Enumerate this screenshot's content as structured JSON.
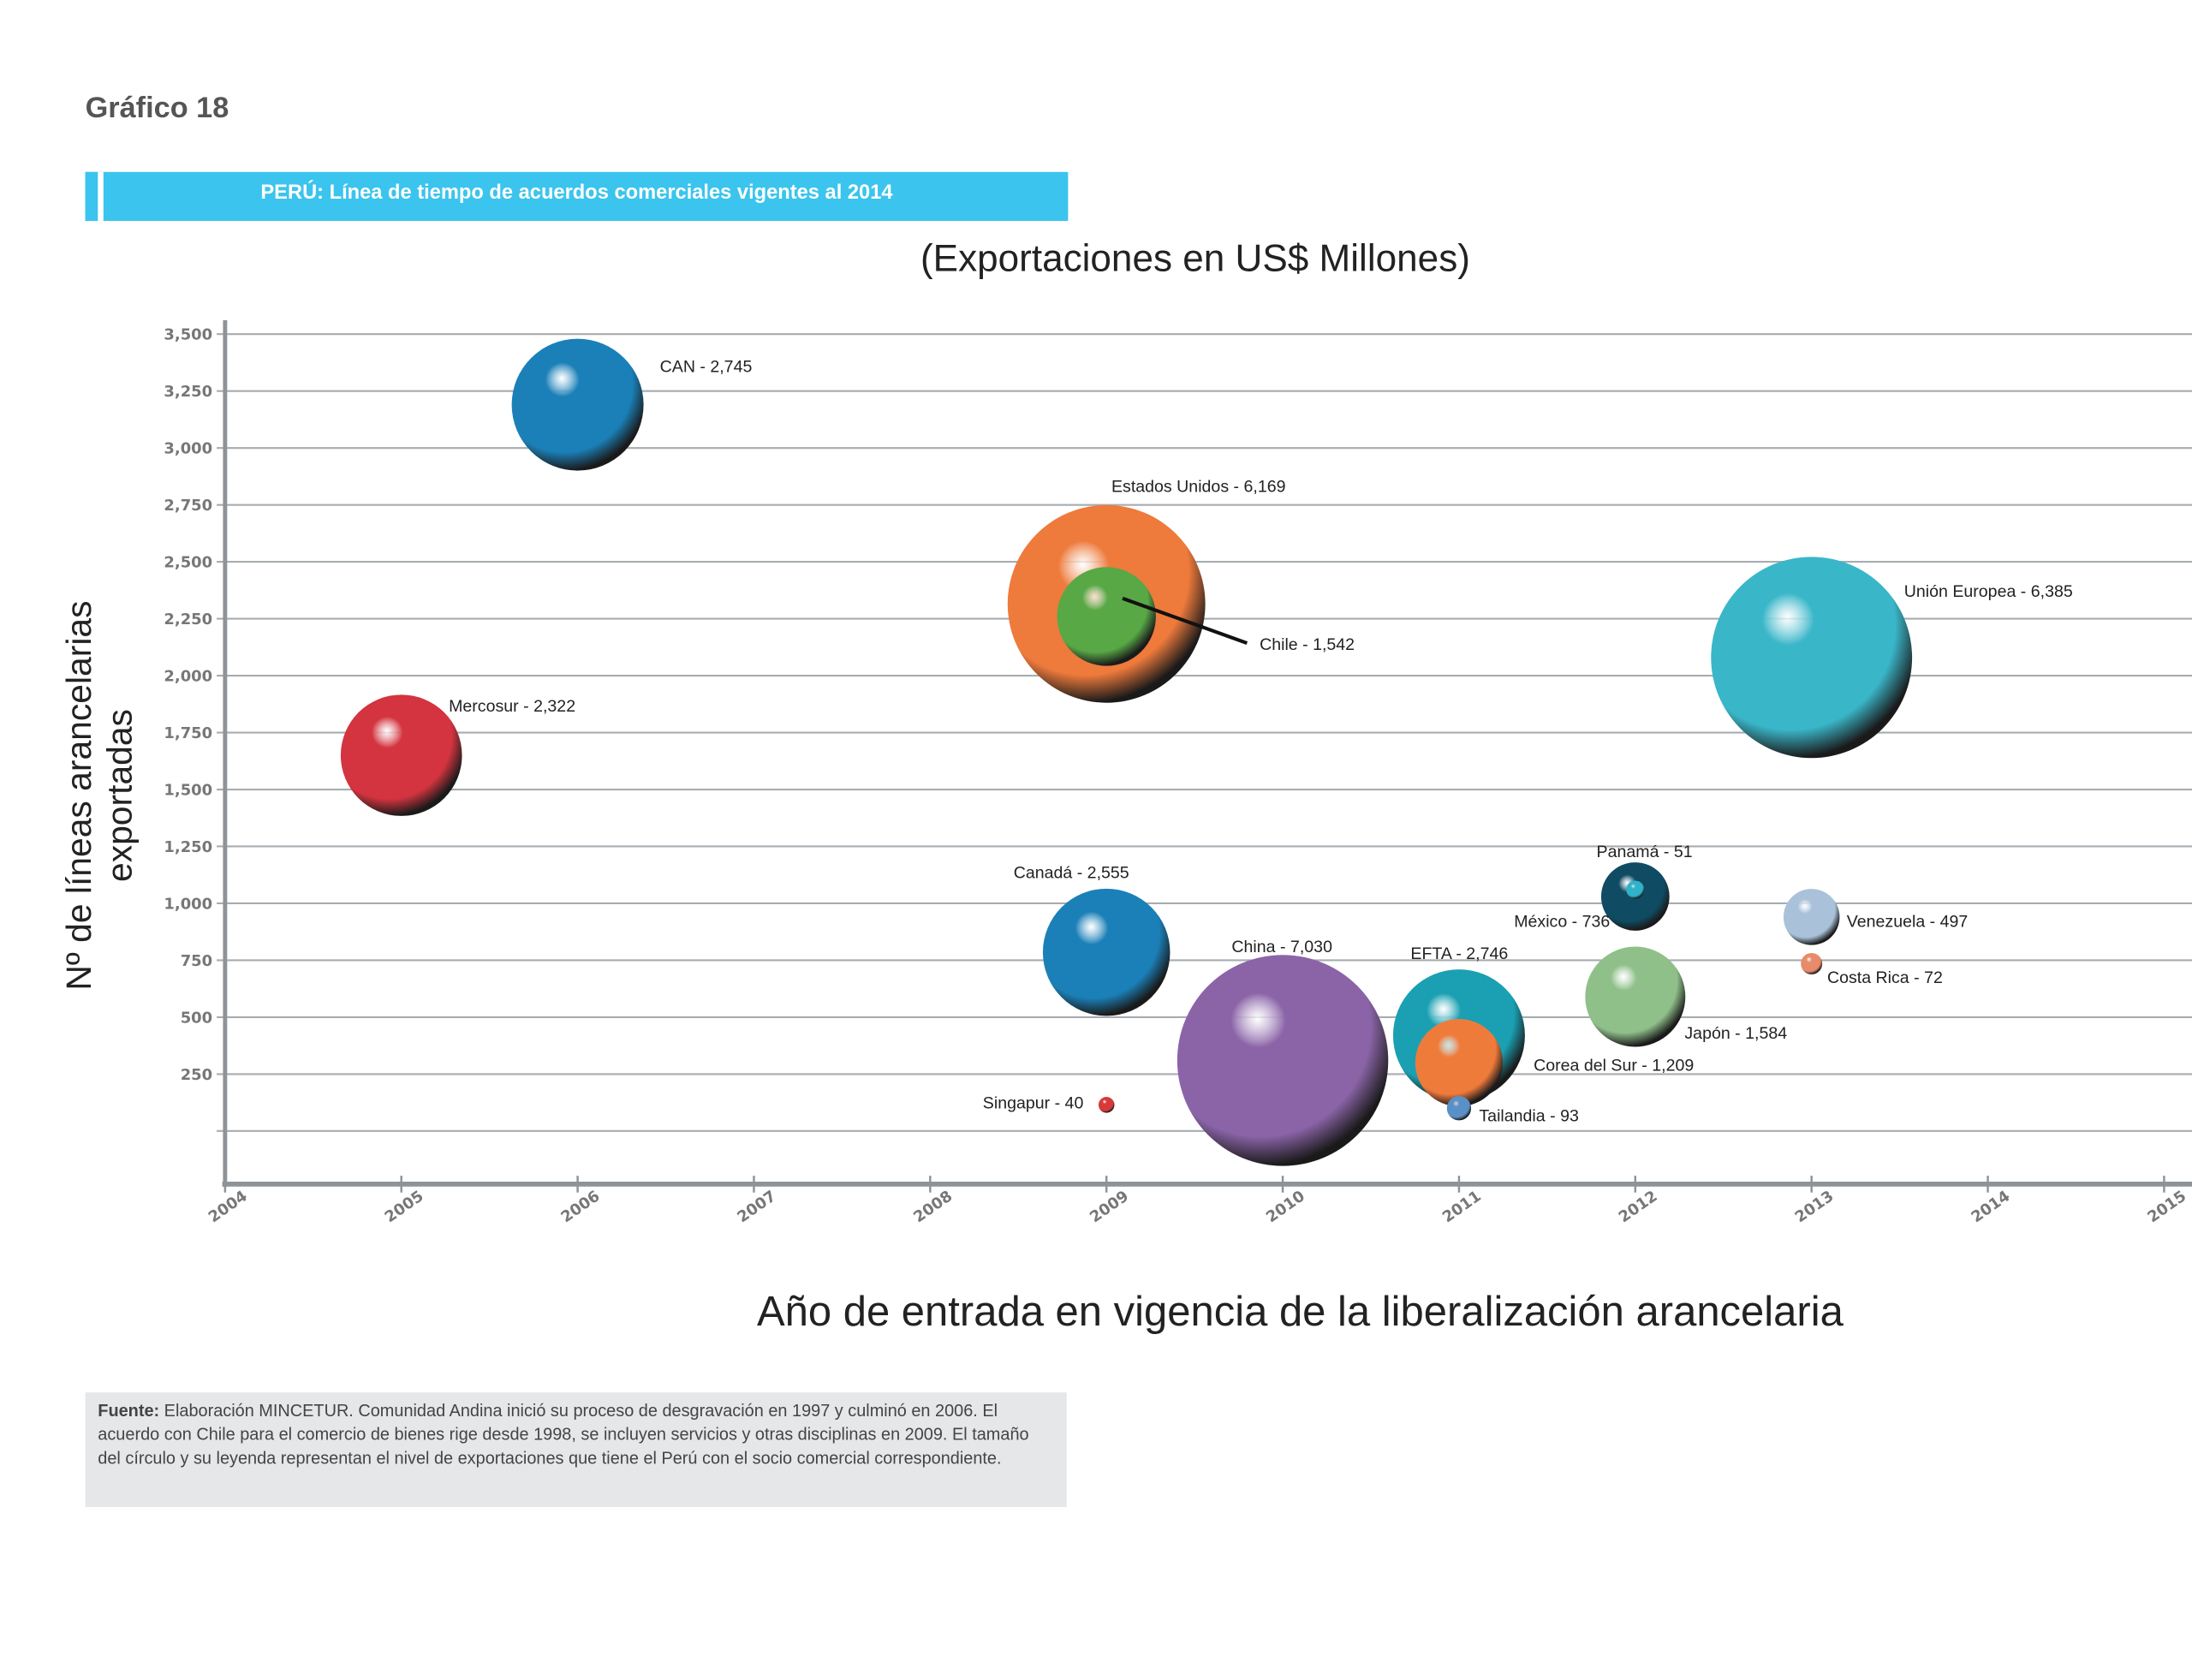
{
  "figure_number": "Gráfico 18",
  "banner_title": "PERÚ: Línea de tiempo de acuerdos comerciales vigentes al 2014",
  "source": {
    "label": "Fuente:",
    "text": " Elaboración MINCETUR.  Comunidad Andina inició su proceso de desgravación en 1997 y culminó en 2006. El acuerdo con Chile para el comercio de bienes rige desde 1998, se incluyen servicios y otras disciplinas en 2009. El tamaño del círculo y su leyenda representan el nivel de exportaciones que tiene el Perú con el socio comercial correspondiente."
  },
  "chart_data": {
    "type": "bubble",
    "title": "(Exportaciones en US$ Millones)",
    "xlabel": "Año de entrada en vigencia de la liberalización arancelaria",
    "ylabel": "Nº de líneas arancelarias exportadas",
    "xlim": [
      2004,
      2015
    ],
    "ylim": [
      -250,
      3500
    ],
    "x_ticks": [
      "2004",
      "2005",
      "2006",
      "2007",
      "2008",
      "2009",
      "2010",
      "2011",
      "2012",
      "2013",
      "2014",
      "2015"
    ],
    "y_ticks": [
      "3,500",
      "3,250",
      "3,000",
      "2,750",
      "2,500",
      "2,250",
      "2,000",
      "1,750",
      "1,500",
      "1,250",
      "1,000",
      "750",
      "500",
      "250",
      ""
    ],
    "grid": true,
    "size_measure": "Exportaciones en US$ Millones",
    "points": [
      {
        "label": "CAN - 2,745",
        "partner": "CAN",
        "x": 2006,
        "y": 3190,
        "size": 2745,
        "color": "#1b80b8"
      },
      {
        "label": "Mercosur - 2,322",
        "partner": "Mercosur",
        "x": 2005,
        "y": 1650,
        "size": 2322,
        "color": "#d3343f"
      },
      {
        "label": "Estados Unidos - 6,169",
        "partner": "Estados Unidos",
        "x": 2009,
        "y": 2315,
        "size": 6169,
        "color": "#ee7a3c"
      },
      {
        "label": "Chile - 1,542",
        "partner": "Chile",
        "x": 2009,
        "y": 2260,
        "size": 1542,
        "color": "#58a846"
      },
      {
        "label": "Unión Europea - 6,385",
        "partner": "Unión Europea",
        "x": 2013,
        "y": 2080,
        "size": 6385,
        "color": "#3ab6c9"
      },
      {
        "label": "Canadá - 2,555",
        "partner": "Canadá",
        "x": 2009,
        "y": 785,
        "size": 2555,
        "color": "#1b80b8"
      },
      {
        "label": "China - 7,030",
        "partner": "China",
        "x": 2010,
        "y": 310,
        "size": 7030,
        "color": "#8b64a8"
      },
      {
        "label": "EFTA - 2,746",
        "partner": "EFTA",
        "x": 2011,
        "y": 420,
        "size": 2746,
        "color": "#1aa0b2"
      },
      {
        "label": "Corea del Sur - 1,209",
        "partner": "Corea del Sur",
        "x": 2011,
        "y": 300,
        "size": 1209,
        "color": "#ef7b3b"
      },
      {
        "label": "Tailandia - 93",
        "partner": "Tailandia",
        "x": 2011,
        "y": 100,
        "size": 93,
        "color": "#5a90c8"
      },
      {
        "label": "Singapur - 40",
        "partner": "Singapur",
        "x": 2009,
        "y": 115,
        "size": 40,
        "color": "#d83a3a"
      },
      {
        "label": "México - 736",
        "partner": "México",
        "x": 2012,
        "y": 1030,
        "size": 736,
        "color": "#0f4c63"
      },
      {
        "label": "Panamá - 51",
        "partner": "Panamá",
        "x": 2012,
        "y": 1060,
        "size": 51,
        "color": "#30b2c9"
      },
      {
        "label": "Japón - 1,584",
        "partner": "Japón",
        "x": 2012,
        "y": 590,
        "size": 1584,
        "color": "#8fc08a"
      },
      {
        "label": "Venezuela - 497",
        "partner": "Venezuela",
        "x": 2013,
        "y": 940,
        "size": 497,
        "color": "#a9c2da"
      },
      {
        "label": "Costa Rica - 72",
        "partner": "Costa Rica",
        "x": 2013,
        "y": 735,
        "size": 72,
        "color": "#e88b6a"
      }
    ]
  }
}
